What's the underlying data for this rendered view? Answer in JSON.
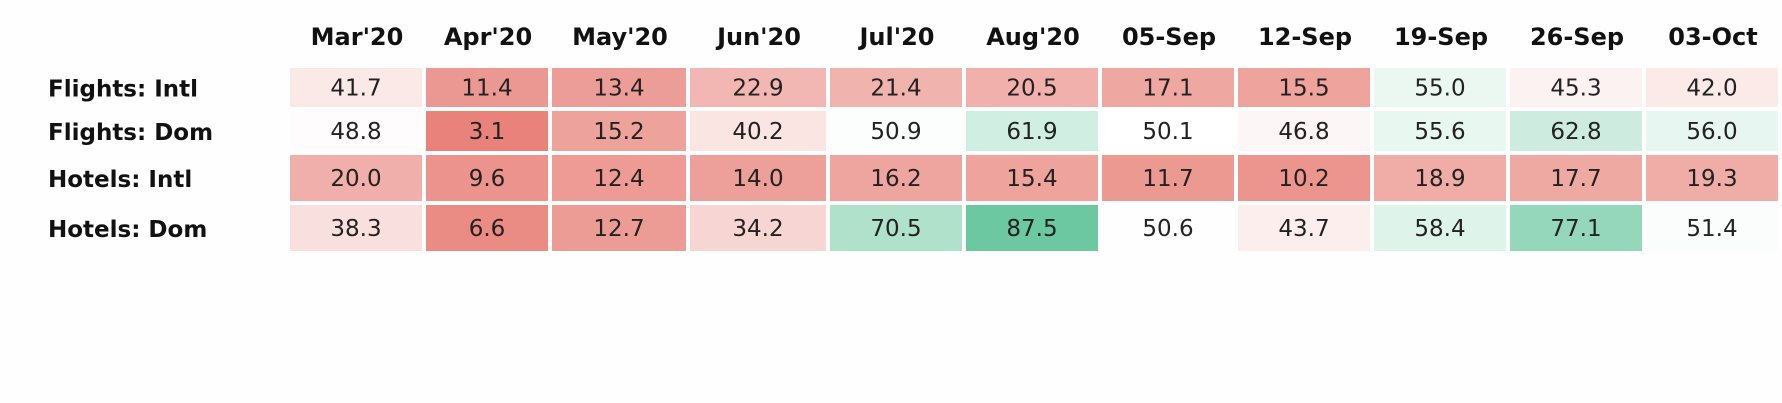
{
  "chart_data": {
    "type": "heatmap",
    "columns": [
      "Mar'20",
      "Apr'20",
      "May'20",
      "Jun'20",
      "Jul'20",
      "Aug'20",
      "05-Sep",
      "12-Sep",
      "19-Sep",
      "26-Sep",
      "03-Oct"
    ],
    "rows": [
      "Flights: Intl",
      "Flights: Dom",
      "Hotels: Intl",
      "Hotels: Dom"
    ],
    "values": [
      [
        41.7,
        11.4,
        13.4,
        22.9,
        21.4,
        20.5,
        17.1,
        15.5,
        55.0,
        45.3,
        42.0
      ],
      [
        48.8,
        3.1,
        15.2,
        40.2,
        50.9,
        61.9,
        50.1,
        46.8,
        55.6,
        62.8,
        56.0
      ],
      [
        20.0,
        9.6,
        12.4,
        14.0,
        16.2,
        15.4,
        11.7,
        10.2,
        18.9,
        17.7,
        19.3
      ],
      [
        38.3,
        6.6,
        12.7,
        34.2,
        70.5,
        87.5,
        50.6,
        43.7,
        58.4,
        77.1,
        51.4
      ]
    ],
    "value_format": "0.0",
    "color_scale": {
      "low": "#e8827a",
      "mid": "#ffffff",
      "high": "#6cc8a0",
      "domain": [
        3.1,
        50,
        87.5
      ]
    },
    "grid": false,
    "legend": "none"
  }
}
